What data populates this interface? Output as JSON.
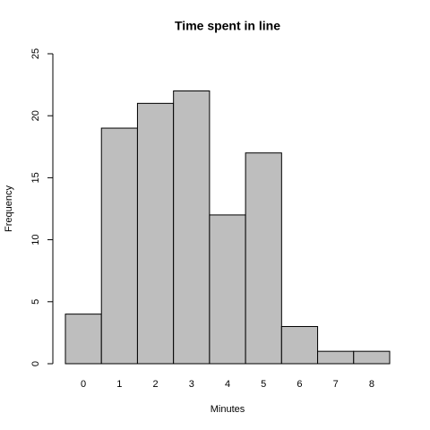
{
  "chart_data": {
    "type": "bar",
    "title": "Time spent in line",
    "xlabel": "Minutes",
    "ylabel": "Frequency",
    "categories": [
      "0",
      "1",
      "2",
      "3",
      "4",
      "5",
      "6",
      "7",
      "8"
    ],
    "values": [
      4,
      19,
      21,
      22,
      12,
      17,
      3,
      1,
      1
    ],
    "color": "#bebebe",
    "ylim": [
      0,
      25
    ],
    "yticks": [
      0,
      5,
      10,
      15,
      20,
      25
    ],
    "grid": false
  }
}
